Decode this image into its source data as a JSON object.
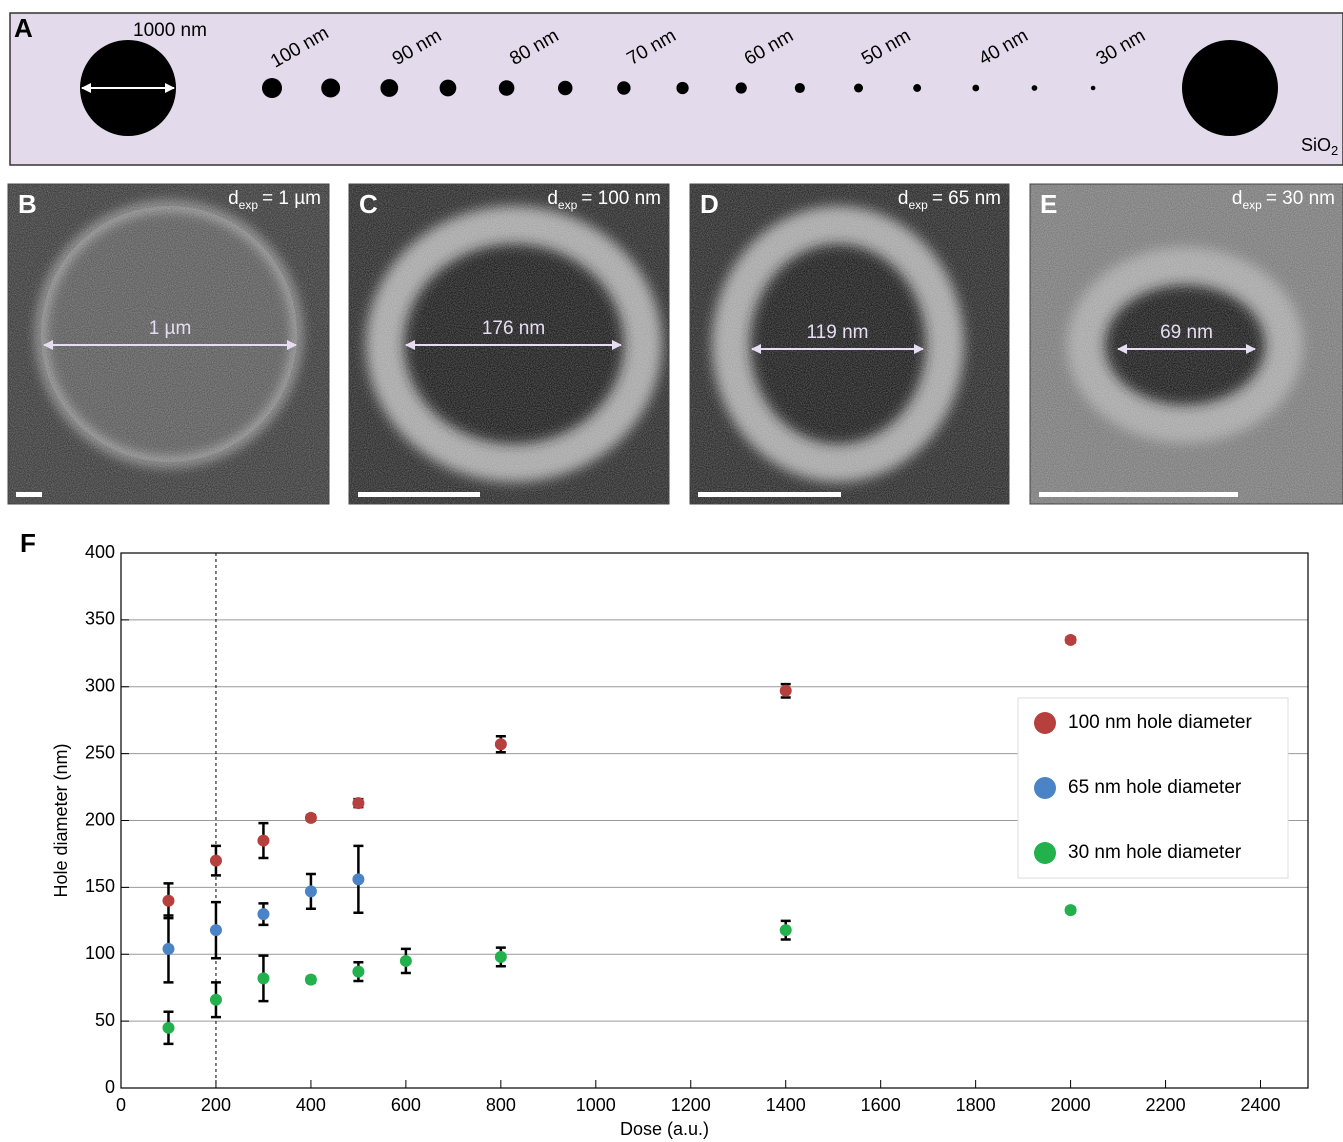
{
  "panel_a": {
    "label": "A",
    "big_label": "1000 nm",
    "size_labels": [
      "100 nm",
      "90 nm",
      "80 nm",
      "70 nm",
      "60 nm",
      "50 nm",
      "40 nm",
      "30 nm"
    ],
    "substrate": "SiO",
    "substrate_sub": "2"
  },
  "micrographs": [
    {
      "label": "B",
      "d": "d",
      "d_sub": "exp",
      "d_value": "= 1 µm",
      "measure": "1 µm"
    },
    {
      "label": "C",
      "d": "d",
      "d_sub": "exp",
      "d_value": "= 100 nm",
      "measure": "176 nm"
    },
    {
      "label": "D",
      "d": "d",
      "d_sub": "exp",
      "d_value": "= 65 nm",
      "measure": "119 nm"
    },
    {
      "label": "E",
      "d": "d",
      "d_sub": "exp",
      "d_value": "= 30 nm",
      "measure": "69 nm"
    }
  ],
  "chart_data": {
    "type": "scatter",
    "panel_label": "F",
    "x_label": "Dose (a.u.)",
    "y_label": "Hole diameter (nm)",
    "xlim": [
      0,
      2500
    ],
    "xticks": [
      0,
      200,
      400,
      600,
      800,
      1000,
      1200,
      1400,
      1600,
      1800,
      2000,
      2200,
      2400
    ],
    "ylim": [
      0,
      400
    ],
    "yticks": [
      0,
      50,
      100,
      150,
      200,
      250,
      300,
      350,
      400
    ],
    "grid": "y",
    "legend": "right",
    "reference_line_x": 200,
    "series": [
      {
        "name": "100 nm hole diameter",
        "color": "#b5403d",
        "x": [
          100,
          200,
          300,
          400,
          500,
          800,
          1400,
          2000
        ],
        "values": [
          140,
          170,
          185,
          202,
          213,
          257,
          297,
          335
        ],
        "errors": [
          13,
          11,
          13,
          2,
          3,
          6,
          5,
          2
        ]
      },
      {
        "name": "65 nm hole diameter",
        "color": "#4a83c6",
        "x": [
          100,
          200,
          300,
          400,
          500
        ],
        "values": [
          104,
          118,
          130,
          147,
          156
        ],
        "errors": [
          25,
          21,
          8,
          13,
          25
        ]
      },
      {
        "name": "30 nm hole diameter",
        "color": "#22b14c",
        "x": [
          100,
          200,
          300,
          400,
          500,
          600,
          800,
          1400,
          2000
        ],
        "values": [
          45,
          66,
          82,
          81,
          87,
          95,
          98,
          118,
          133
        ],
        "errors": [
          12,
          13,
          17,
          2,
          7,
          9,
          7,
          7,
          2
        ]
      }
    ]
  }
}
